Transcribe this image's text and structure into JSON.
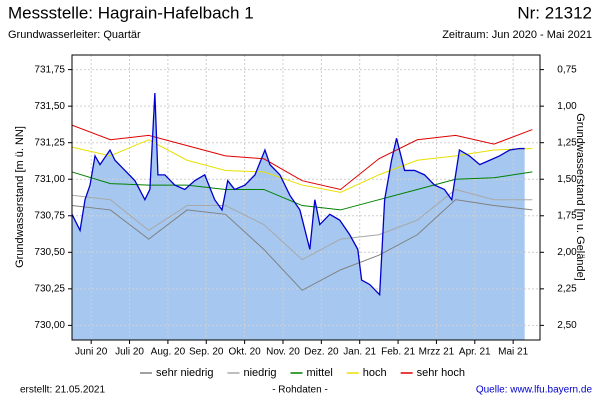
{
  "chart_data": {
    "type": "line",
    "title": "Messstelle: Hagrain-Hafelbach 1",
    "number": "Nr: 21312",
    "subtitle": "Grundwasserleiter: Quartär",
    "period": "Zeitraum: Jun 2020 - Mai 2021",
    "ylabel": "Grundwasserstand [m ü. NN]",
    "y2label": "Grundwasserstand [m u. Gelände]",
    "created": "erstellt:  21.05.2021",
    "raw_label": "- Rohdaten -",
    "source": "Quelle: www.lfu.bayern.de",
    "xlim": [
      0,
      12.2
    ],
    "xticks": [
      {
        "value": 0.5,
        "label": "Juni 20"
      },
      {
        "value": 1.5,
        "label": "Juli 20"
      },
      {
        "value": 2.5,
        "label": "Aug. 20"
      },
      {
        "value": 3.5,
        "label": "Sep. 20"
      },
      {
        "value": 4.5,
        "label": "Okt. 20"
      },
      {
        "value": 5.5,
        "label": "Nov. 20"
      },
      {
        "value": 6.5,
        "label": "Dez. 20"
      },
      {
        "value": 7.5,
        "label": "Jan. 21"
      },
      {
        "value": 8.5,
        "label": "Feb. 21"
      },
      {
        "value": 9.5,
        "label": "Mrzz 21"
      },
      {
        "value": 10.5,
        "label": "Apr. 21"
      },
      {
        "value": 11.5,
        "label": "Mai 21"
      }
    ],
    "ylim": [
      729.9,
      731.85
    ],
    "yticks": [
      {
        "value": 730.0,
        "label": "730,00"
      },
      {
        "value": 730.25,
        "label": "730,25"
      },
      {
        "value": 730.5,
        "label": "730,50"
      },
      {
        "value": 730.75,
        "label": "730,75"
      },
      {
        "value": 731.0,
        "label": "731,00"
      },
      {
        "value": 731.25,
        "label": "731,25"
      },
      {
        "value": 731.5,
        "label": "731,50"
      },
      {
        "value": 731.75,
        "label": "731,75"
      }
    ],
    "y2lim": [
      2.6,
      0.65
    ],
    "y2ticks": [
      {
        "value": 2.5,
        "label": "2,50"
      },
      {
        "value": 2.25,
        "label": "2,25"
      },
      {
        "value": 2.0,
        "label": "2,00"
      },
      {
        "value": 1.75,
        "label": "1,75"
      },
      {
        "value": 1.5,
        "label": "1,50"
      },
      {
        "value": 1.25,
        "label": "1,25"
      },
      {
        "value": 1.0,
        "label": "1,00"
      },
      {
        "value": 0.75,
        "label": "0,75"
      }
    ],
    "grid": true,
    "x": [
      0,
      1,
      2,
      3,
      4,
      5,
      6,
      7,
      8,
      9,
      10,
      11,
      12
    ],
    "series": [
      {
        "name": "sehr niedrig",
        "color": "#808080",
        "values": [
          730.82,
          730.79,
          730.59,
          730.79,
          730.76,
          730.52,
          730.24,
          730.38,
          730.48,
          730.62,
          730.86,
          730.82,
          730.79
        ]
      },
      {
        "name": "niedrig",
        "color": "#a8a8a8",
        "values": [
          730.89,
          730.86,
          730.65,
          730.82,
          730.82,
          730.69,
          730.45,
          730.59,
          730.62,
          730.72,
          730.93,
          730.86,
          730.86
        ]
      },
      {
        "name": "mittel",
        "color": "#008000",
        "values": [
          731.05,
          730.97,
          730.96,
          730.96,
          730.93,
          730.93,
          730.82,
          730.79,
          730.86,
          730.93,
          731.0,
          731.01,
          731.05
        ]
      },
      {
        "name": "hoch",
        "color": "#e8e000",
        "values": [
          731.22,
          731.16,
          731.27,
          731.13,
          731.06,
          731.05,
          730.96,
          730.91,
          731.03,
          731.13,
          731.16,
          731.2,
          731.21
        ]
      },
      {
        "name": "sehr hoch",
        "color": "#e00000",
        "values": [
          731.37,
          731.27,
          731.3,
          731.23,
          731.16,
          731.14,
          730.99,
          730.93,
          731.14,
          731.27,
          731.3,
          731.24,
          731.34
        ]
      }
    ],
    "raw": {
      "color": "#0000cc",
      "fill": "#a6c8f0",
      "x": [
        0,
        0.21,
        0.34,
        0.47,
        0.6,
        0.73,
        0.99,
        1.12,
        1.38,
        1.64,
        1.9,
        2.03,
        2.16,
        2.24,
        2.42,
        2.68,
        2.94,
        3.2,
        3.46,
        3.72,
        3.91,
        4.06,
        4.24,
        4.51,
        4.77,
        5.03,
        5.16,
        5.42,
        5.68,
        5.94,
        6.2,
        6.33,
        6.46,
        6.72,
        6.98,
        7.24,
        7.45,
        7.55,
        7.76,
        8.02,
        8.15,
        8.33,
        8.46,
        8.67,
        8.93,
        9.19,
        9.45,
        9.71,
        9.9,
        10.1,
        10.36,
        10.63,
        10.89,
        11.15,
        11.41,
        11.67,
        11.8
      ],
      "values": [
        730.76,
        730.65,
        730.86,
        730.96,
        731.16,
        731.1,
        731.2,
        731.13,
        731.06,
        730.99,
        730.86,
        730.93,
        731.59,
        731.03,
        731.03,
        730.96,
        730.93,
        730.99,
        731.03,
        730.86,
        730.79,
        730.99,
        730.93,
        730.96,
        731.03,
        731.2,
        731.1,
        731.03,
        730.89,
        730.79,
        730.52,
        730.86,
        730.69,
        730.76,
        730.72,
        730.62,
        730.52,
        730.31,
        730.28,
        730.21,
        730.86,
        731.13,
        731.28,
        731.06,
        731.06,
        731.03,
        730.96,
        730.93,
        730.86,
        731.2,
        731.16,
        731.1,
        731.13,
        731.16,
        731.2,
        731.21,
        731.21
      ]
    }
  }
}
